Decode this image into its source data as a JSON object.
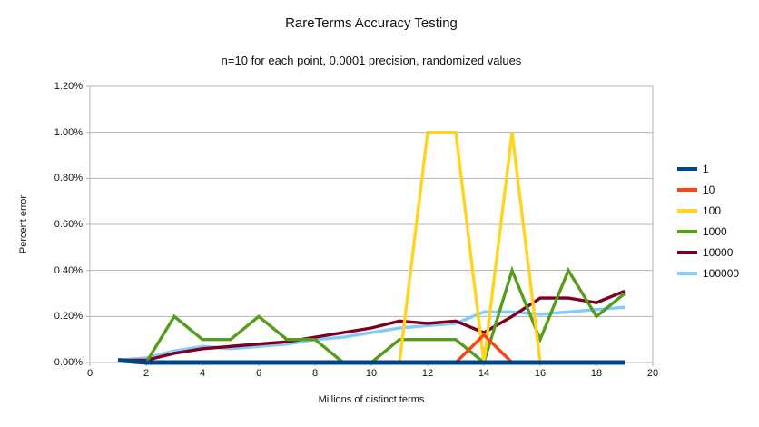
{
  "chart_data": {
    "type": "line",
    "title": "RareTerms Accuracy Testing",
    "subtitle": "n=10 for each point, 0.0001 precision, randomized values",
    "xlabel": "Millions of distinct terms",
    "ylabel": "Percent error",
    "xlim": [
      0,
      20
    ],
    "ylim_percent": [
      0,
      1.2
    ],
    "x_ticks": [
      0,
      2,
      4,
      6,
      8,
      10,
      12,
      14,
      16,
      18,
      20
    ],
    "y_ticks_percent": [
      0,
      0.2,
      0.4,
      0.6,
      0.8,
      1.0,
      1.2
    ],
    "y_tick_labels": [
      "0.00%",
      "0.20%",
      "0.40%",
      "0.60%",
      "0.80%",
      "1.00%",
      "1.20%"
    ],
    "grid": true,
    "legend_position": "right",
    "x": [
      1,
      2,
      3,
      4,
      5,
      6,
      7,
      8,
      9,
      10,
      11,
      12,
      13,
      14,
      15,
      16,
      17,
      18,
      19
    ],
    "series": [
      {
        "name": "1",
        "color": "#004586",
        "values": [
          0.01,
          0,
          0,
          0,
          0,
          0,
          0,
          0,
          0,
          0,
          0,
          0,
          0,
          0,
          0,
          0,
          0,
          0,
          0
        ]
      },
      {
        "name": "10",
        "color": "#ff420e",
        "values": [
          0.01,
          0,
          0,
          0,
          0,
          0,
          0,
          0,
          0,
          0,
          0,
          0,
          0,
          0.12,
          0,
          0,
          0,
          0,
          0
        ]
      },
      {
        "name": "100",
        "color": "#ffd320",
        "values": [
          0.01,
          0,
          0,
          0,
          0,
          0,
          0,
          0,
          0,
          0,
          0,
          1.0,
          1.0,
          0,
          1.0,
          0,
          0,
          0,
          0
        ]
      },
      {
        "name": "1000",
        "color": "#579d1c",
        "values": [
          0.01,
          0,
          0.2,
          0.1,
          0.1,
          0.2,
          0.1,
          0.1,
          0,
          0,
          0.1,
          0.1,
          0.1,
          0,
          0.4,
          0.1,
          0.4,
          0.2,
          0.3
        ]
      },
      {
        "name": "10000",
        "color": "#7e0021",
        "values": [
          0.01,
          0.01,
          0.04,
          0.06,
          0.07,
          0.08,
          0.09,
          0.11,
          0.13,
          0.15,
          0.18,
          0.17,
          0.18,
          0.13,
          0.2,
          0.28,
          0.28,
          0.26,
          0.31
        ]
      },
      {
        "name": "100000",
        "color": "#83caff",
        "values": [
          0.01,
          0.02,
          0.05,
          0.07,
          0.06,
          0.07,
          0.08,
          0.1,
          0.11,
          0.13,
          0.15,
          0.16,
          0.17,
          0.22,
          0.22,
          0.21,
          0.22,
          0.23,
          0.24
        ]
      }
    ],
    "style": {
      "grid_color": "#b3b3b3",
      "axis_color": "#b3b3b3",
      "background": "#ffffff"
    }
  }
}
